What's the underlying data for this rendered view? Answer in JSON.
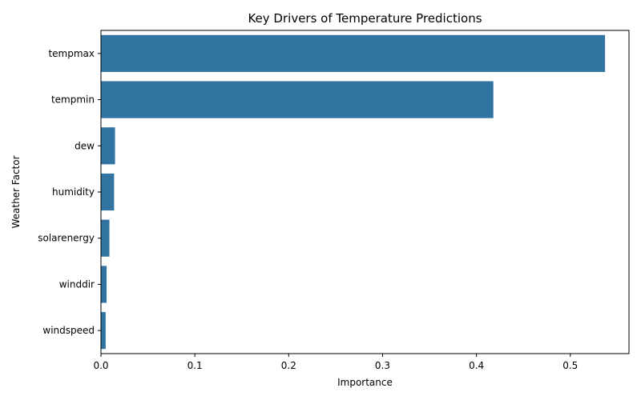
{
  "chart_data": {
    "type": "bar",
    "orientation": "horizontal",
    "title": "Key Drivers of Temperature Predictions",
    "xlabel": "Importance",
    "ylabel": "Weather Factor",
    "categories": [
      "tempmax",
      "tempmin",
      "dew",
      "humidity",
      "solarenergy",
      "winddir",
      "windspeed"
    ],
    "values": [
      0.537,
      0.418,
      0.015,
      0.014,
      0.009,
      0.006,
      0.005
    ],
    "xlim": [
      0,
      0.5625
    ],
    "xticks": [
      0.0,
      0.1,
      0.2,
      0.3,
      0.4,
      0.5
    ],
    "xtick_labels": [
      "0.0",
      "0.1",
      "0.2",
      "0.3",
      "0.4",
      "0.5"
    ],
    "bar_color": "#3274a1",
    "grid": false,
    "legend": "none"
  }
}
